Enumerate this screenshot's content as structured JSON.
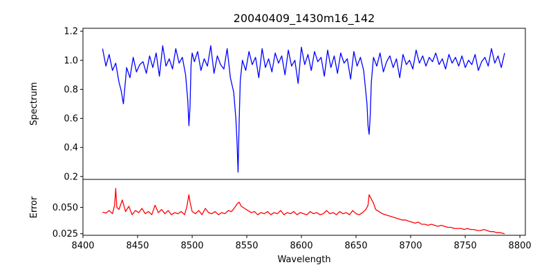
{
  "chart_data": {
    "type": "line",
    "title": "20040409_1430m16_142",
    "xlabel": "Wavelength",
    "x_ticks": [
      8400,
      8450,
      8500,
      8550,
      8600,
      8650,
      8700,
      8750,
      8800
    ],
    "xlim": [
      8400,
      8805
    ],
    "panels": [
      {
        "name": "spectrum-panel",
        "ylabel": "Spectrum",
        "ylim": [
          0.18,
          1.22
        ],
        "y_ticks": [
          0.2,
          0.4,
          0.6,
          0.8,
          1.0,
          1.2
        ],
        "y_tick_labels": [
          "0.2",
          "0.4",
          "0.6",
          "0.8",
          "1.0",
          "1.2"
        ],
        "color": "#0000ff",
        "x": [
          8418,
          8421,
          8424,
          8427,
          8430,
          8433,
          8435,
          8437,
          8440,
          8443,
          8446,
          8449,
          8452,
          8455,
          8458,
          8461,
          8464,
          8467,
          8470,
          8473,
          8476,
          8479,
          8482,
          8485,
          8488,
          8491,
          8494,
          8496,
          8497,
          8498,
          8499,
          8500,
          8502,
          8505,
          8508,
          8511,
          8514,
          8517,
          8520,
          8523,
          8526,
          8529,
          8532,
          8535,
          8538,
          8540,
          8541,
          8542,
          8543,
          8544,
          8546,
          8549,
          8552,
          8555,
          8558,
          8561,
          8564,
          8567,
          8570,
          8573,
          8576,
          8579,
          8582,
          8585,
          8588,
          8591,
          8594,
          8597,
          8600,
          8603,
          8606,
          8609,
          8612,
          8615,
          8618,
          8621,
          8624,
          8627,
          8630,
          8633,
          8636,
          8639,
          8642,
          8645,
          8648,
          8651,
          8654,
          8657,
          8660,
          8661,
          8662,
          8663,
          8664,
          8666,
          8669,
          8672,
          8675,
          8678,
          8681,
          8684,
          8687,
          8690,
          8693,
          8696,
          8699,
          8702,
          8705,
          8708,
          8711,
          8714,
          8717,
          8720,
          8723,
          8726,
          8729,
          8732,
          8735,
          8738,
          8741,
          8744,
          8747,
          8750,
          8753,
          8756,
          8759,
          8762,
          8765,
          8768,
          8771,
          8774,
          8777,
          8780,
          8783,
          8786
        ],
        "values": [
          1.08,
          0.96,
          1.04,
          0.93,
          0.98,
          0.85,
          0.79,
          0.7,
          0.95,
          0.88,
          1.02,
          0.92,
          0.97,
          0.99,
          0.91,
          1.03,
          0.95,
          1.05,
          0.89,
          1.1,
          0.96,
          1.01,
          0.94,
          1.08,
          0.98,
          1.02,
          0.9,
          0.72,
          0.55,
          0.68,
          0.97,
          1.05,
          0.99,
          1.06,
          0.93,
          1.01,
          0.96,
          1.1,
          0.91,
          1.03,
          0.97,
          0.94,
          1.08,
          0.88,
          0.78,
          0.6,
          0.45,
          0.23,
          0.58,
          0.86,
          1.0,
          0.93,
          1.06,
          0.97,
          1.02,
          0.88,
          1.08,
          0.95,
          1.01,
          0.92,
          1.05,
          0.98,
          1.03,
          0.9,
          1.07,
          0.96,
          1.0,
          0.84,
          1.09,
          0.97,
          1.04,
          0.93,
          1.06,
          0.99,
          1.02,
          0.89,
          1.07,
          0.95,
          1.03,
          0.91,
          1.05,
          0.98,
          1.01,
          0.87,
          1.06,
          0.96,
          1.02,
          0.93,
          0.7,
          0.55,
          0.49,
          0.62,
          0.85,
          1.02,
          0.96,
          1.05,
          0.92,
          0.99,
          1.03,
          0.95,
          1.01,
          0.88,
          1.04,
          0.97,
          1.0,
          0.94,
          1.07,
          0.98,
          1.03,
          0.96,
          1.02,
          0.99,
          1.05,
          0.97,
          1.01,
          0.94,
          1.04,
          0.98,
          1.02,
          0.96,
          1.03,
          0.95,
          1.0,
          0.97,
          1.04,
          0.93,
          0.99,
          1.02,
          0.96,
          1.08,
          0.98,
          1.03,
          0.95,
          1.05
        ]
      },
      {
        "name": "error-panel",
        "ylabel": "Error",
        "ylim": [
          0.0235,
          0.0765
        ],
        "y_ticks": [
          0.025,
          0.05
        ],
        "y_tick_labels": [
          "0.025",
          "0.050"
        ],
        "color": "#ff0000",
        "x": [
          8418,
          8421,
          8424,
          8427,
          8429,
          8430,
          8431,
          8433,
          8436,
          8439,
          8442,
          8445,
          8448,
          8451,
          8454,
          8457,
          8460,
          8463,
          8466,
          8469,
          8472,
          8475,
          8478,
          8481,
          8484,
          8487,
          8490,
          8493,
          8495,
          8497,
          8498,
          8500,
          8503,
          8506,
          8509,
          8512,
          8515,
          8518,
          8521,
          8524,
          8527,
          8530,
          8533,
          8536,
          8539,
          8541,
          8543,
          8545,
          8548,
          8551,
          8554,
          8557,
          8560,
          8563,
          8566,
          8569,
          8572,
          8575,
          8578,
          8581,
          8584,
          8587,
          8590,
          8593,
          8596,
          8599,
          8602,
          8605,
          8608,
          8611,
          8614,
          8617,
          8620,
          8623,
          8626,
          8629,
          8632,
          8635,
          8638,
          8641,
          8644,
          8647,
          8650,
          8653,
          8656,
          8659,
          8661,
          8662,
          8664,
          8666,
          8668,
          8671,
          8674,
          8677,
          8680,
          8683,
          8686,
          8689,
          8692,
          8695,
          8698,
          8701,
          8704,
          8707,
          8710,
          8713,
          8716,
          8719,
          8722,
          8725,
          8728,
          8731,
          8734,
          8737,
          8740,
          8743,
          8746,
          8749,
          8752,
          8755,
          8758,
          8761,
          8764,
          8767,
          8770,
          8773,
          8776,
          8779,
          8782,
          8786
        ],
        "values": [
          0.0455,
          0.0445,
          0.047,
          0.044,
          0.052,
          0.068,
          0.05,
          0.048,
          0.057,
          0.046,
          0.051,
          0.043,
          0.047,
          0.045,
          0.049,
          0.044,
          0.046,
          0.043,
          0.052,
          0.045,
          0.048,
          0.044,
          0.047,
          0.043,
          0.045,
          0.044,
          0.046,
          0.043,
          0.05,
          0.062,
          0.055,
          0.046,
          0.044,
          0.047,
          0.043,
          0.049,
          0.045,
          0.044,
          0.046,
          0.043,
          0.045,
          0.044,
          0.047,
          0.046,
          0.05,
          0.053,
          0.055,
          0.051,
          0.049,
          0.047,
          0.045,
          0.046,
          0.043,
          0.045,
          0.044,
          0.046,
          0.043,
          0.045,
          0.044,
          0.047,
          0.043,
          0.045,
          0.044,
          0.046,
          0.043,
          0.045,
          0.044,
          0.043,
          0.046,
          0.044,
          0.045,
          0.043,
          0.044,
          0.047,
          0.044,
          0.045,
          0.043,
          0.046,
          0.044,
          0.045,
          0.043,
          0.047,
          0.044,
          0.043,
          0.045,
          0.048,
          0.052,
          0.062,
          0.058,
          0.054,
          0.048,
          0.046,
          0.044,
          0.043,
          0.042,
          0.041,
          0.04,
          0.039,
          0.038,
          0.038,
          0.037,
          0.036,
          0.035,
          0.036,
          0.034,
          0.034,
          0.033,
          0.034,
          0.033,
          0.032,
          0.033,
          0.032,
          0.031,
          0.031,
          0.03,
          0.03,
          0.03,
          0.029,
          0.03,
          0.029,
          0.029,
          0.028,
          0.028,
          0.029,
          0.028,
          0.027,
          0.027,
          0.026,
          0.026,
          0.025
        ]
      }
    ]
  }
}
